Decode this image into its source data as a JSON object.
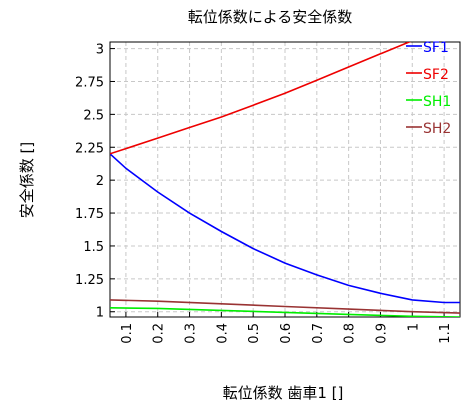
{
  "chart_data": {
    "type": "line",
    "title": "転位係数による安全係数",
    "xlabel": "転位係数 歯車1 []",
    "ylabel": "安全係数 []",
    "xlim": [
      0.05,
      1.15
    ],
    "ylim": [
      0.96,
      3.05
    ],
    "x_ticks": [
      0.1,
      0.2,
      0.3,
      0.4,
      0.5,
      0.6,
      0.7,
      0.8,
      0.9,
      1,
      1.1
    ],
    "x_tick_labels": [
      "0.1",
      "0.2",
      "0.3",
      "0.4",
      "0.5",
      "0.6",
      "0.7",
      "0.8",
      "0.9",
      "1",
      "1.1"
    ],
    "y_ticks": [
      1,
      1.25,
      1.5,
      1.75,
      2,
      2.25,
      2.5,
      2.75,
      3
    ],
    "y_tick_labels": [
      "1",
      "1.25",
      "1.5",
      "1.75",
      "2",
      "2.25",
      "2.5",
      "2.75",
      "3"
    ],
    "grid": true,
    "legend_position": "top-right",
    "series": [
      {
        "name": "SF1",
        "color": "#0000ff",
        "x": [
          0.05,
          0.1,
          0.2,
          0.3,
          0.4,
          0.5,
          0.6,
          0.7,
          0.8,
          0.9,
          1.0,
          1.1,
          1.15
        ],
        "y": [
          2.2,
          2.09,
          1.91,
          1.75,
          1.61,
          1.48,
          1.37,
          1.28,
          1.2,
          1.14,
          1.09,
          1.07,
          1.07
        ]
      },
      {
        "name": "SF2",
        "color": "#ee0000",
        "x": [
          0.05,
          0.1,
          0.2,
          0.3,
          0.4,
          0.5,
          0.6,
          0.7,
          0.8,
          0.9,
          1.0,
          1.1,
          1.15
        ],
        "y": [
          2.2,
          2.24,
          2.32,
          2.4,
          2.48,
          2.57,
          2.66,
          2.76,
          2.86,
          2.96,
          3.06,
          3.16,
          3.21
        ]
      },
      {
        "name": "SH1",
        "color": "#00ee00",
        "x": [
          0.05,
          0.2,
          0.4,
          0.6,
          0.8,
          1.0,
          1.15
        ],
        "y": [
          1.03,
          1.025,
          1.01,
          0.995,
          0.98,
          0.965,
          0.96
        ]
      },
      {
        "name": "SH2",
        "color": "#993333",
        "x": [
          0.05,
          0.2,
          0.4,
          0.6,
          0.8,
          1.0,
          1.15
        ],
        "y": [
          1.09,
          1.08,
          1.06,
          1.04,
          1.02,
          1.0,
          0.99
        ]
      }
    ]
  }
}
